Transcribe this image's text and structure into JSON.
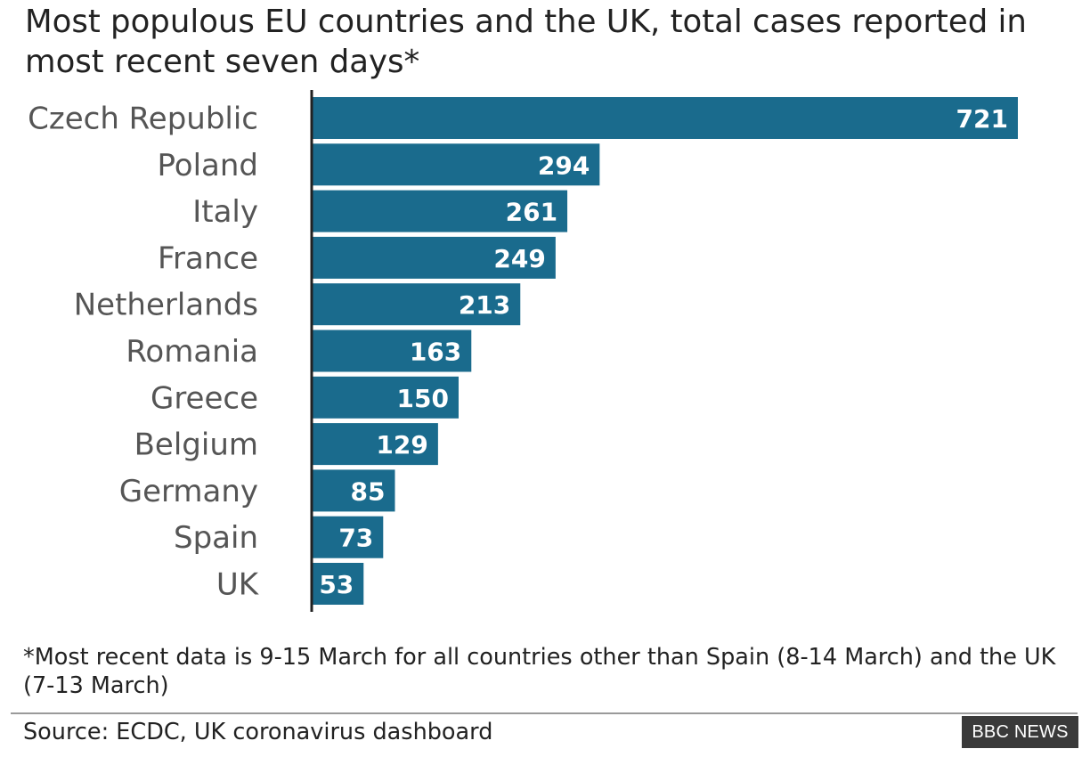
{
  "title": "Most populous EU countries and the UK, total cases reported in most recent seven days*",
  "footnote": "*Most recent data is 9-15 March for all countries other than Spain (8-14 March) and the UK (7-13 March)",
  "source": "Source: ECDC, UK coronavirus dashboard",
  "logo_text": "BBC NEWS",
  "colors": {
    "bar": "#1a6b8d",
    "bar_label": "#ffffff",
    "category_label": "#555555",
    "axis": "#222222"
  },
  "chart_data": {
    "type": "bar",
    "orientation": "horizontal",
    "title": "Most populous EU countries and the UK, total cases reported in most recent seven days*",
    "xlabel": "",
    "ylabel": "",
    "categories": [
      "Czech Republic",
      "Poland",
      "Italy",
      "France",
      "Netherlands",
      "Romania",
      "Greece",
      "Belgium",
      "Germany",
      "Spain",
      "UK"
    ],
    "values": [
      721,
      294,
      261,
      249,
      213,
      163,
      150,
      129,
      85,
      73,
      53
    ],
    "data_labels": [
      "721",
      "294",
      "261",
      "249",
      "213",
      "163",
      "150",
      "129",
      "85",
      "73",
      "53"
    ],
    "xlim": [
      0,
      721
    ],
    "grid": false,
    "legend": "none"
  }
}
